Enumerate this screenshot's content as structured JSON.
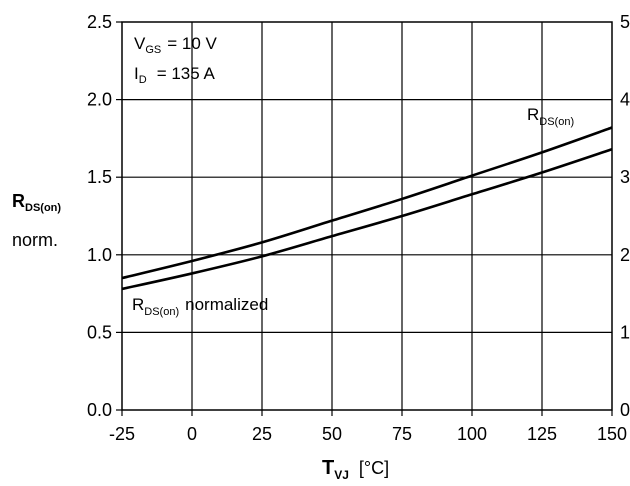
{
  "chart_data": {
    "type": "line",
    "x": [
      -25,
      0,
      25,
      50,
      75,
      100,
      125,
      150
    ],
    "xlim": [
      -25,
      150
    ],
    "ylim": [
      0,
      2.5
    ],
    "x_ticks": [
      "-25",
      "0",
      "25",
      "50",
      "75",
      "100",
      "125",
      "150"
    ],
    "y_ticks": [
      "0.0",
      "0.5",
      "1.0",
      "1.5",
      "2.0",
      "2.5"
    ],
    "right_axis_ticks": [
      "0",
      "1",
      "2",
      "3",
      "4",
      "5"
    ],
    "grid": true,
    "series": [
      {
        "name": "R_DS(on)",
        "label_main": "R",
        "label_sub": "DS(on)",
        "values": [
          0.85,
          0.96,
          1.08,
          1.22,
          1.36,
          1.51,
          1.66,
          1.82
        ],
        "color": "#000000"
      },
      {
        "name": "R_DS(on) normalized",
        "label_main": "R",
        "label_sub": "DS(on)",
        "label_suffix": "normalized",
        "values": [
          0.78,
          0.88,
          0.99,
          1.12,
          1.25,
          1.39,
          1.53,
          1.68
        ],
        "color": "#000000"
      }
    ],
    "ylabel": {
      "main": "R",
      "sub": "DS(on)",
      "line2": "norm."
    },
    "xlabel": {
      "main": "T",
      "sub": "VJ",
      "unit": "[°C]"
    },
    "annotations": {
      "vgs": {
        "main": "V",
        "sub": "GS",
        "text": "=   10 V"
      },
      "id": {
        "main": "I",
        "sub": "D",
        "text": "= 135 A"
      }
    }
  }
}
